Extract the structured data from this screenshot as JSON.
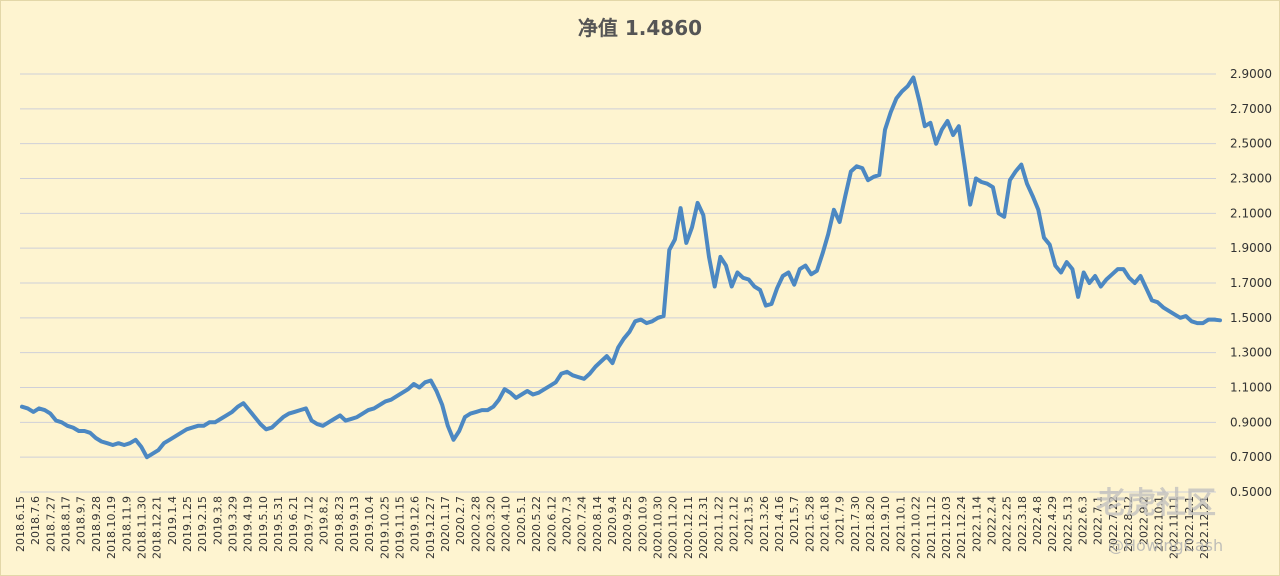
{
  "chart_data": {
    "type": "line",
    "title": "净值 1.4860",
    "xlabel": "",
    "ylabel": "",
    "ylim": [
      0.5,
      2.9
    ],
    "grid": true,
    "yticks": [
      "0.5000",
      "0.7000",
      "0.9000",
      "1.1000",
      "1.3000",
      "1.5000",
      "1.7000",
      "1.9000",
      "2.1000",
      "2.3000",
      "2.5000",
      "2.7000",
      "2.9000"
    ],
    "xticks": [
      "2018.6.15",
      "2018.7.6",
      "2018.7.27",
      "2018.8.17",
      "2018.9.7",
      "2018.9.28",
      "2018.10.19",
      "2018.11.9",
      "2018.11.30",
      "2018.12.21",
      "2019.1.4",
      "2019.1.25",
      "2019.2.15",
      "2019.3.8",
      "2019.3.29",
      "2019.4.19",
      "2019.5.10",
      "2019.5.31",
      "2019.6.21",
      "2019.7.12",
      "2019.8.2",
      "2019.8.23",
      "2019.9.13",
      "2019.10.4",
      "2019.10.25",
      "2019.11.15",
      "2019.12.6",
      "2019.12.27",
      "2020.1.17",
      "2020.2.7",
      "2020.2.28",
      "2020.3.20",
      "2020.4.10",
      "2020.5.1",
      "2020.5.22",
      "2020.6.12",
      "2020.7.3",
      "2020.7.24",
      "2020.8.14",
      "2020.9.4",
      "2020.9.25",
      "2020.10.9",
      "2020.10.30",
      "2020.11.20",
      "2020.12.11",
      "2020.12.31",
      "2021.1.22",
      "2021.2.12",
      "2021.3.5",
      "2021.3.26",
      "2021.4.16",
      "2021.5.7",
      "2021.5.28",
      "2021.6.18",
      "2021.7.9",
      "2021.7.30",
      "2021.8.20",
      "2021.9.10",
      "2021.10.1",
      "2021.10.22",
      "2021.11.12",
      "2021.12.03",
      "2021.12.24",
      "2022.1.14",
      "2022.2.4",
      "2022.2.25",
      "2022.3.18",
      "2022.4.8",
      "2022.4.29",
      "2022.5.13",
      "2022.6.3",
      "2022.7.1",
      "2022.7.22",
      "2022.8.12",
      "2022.9.2",
      "2022.10.1",
      "2022.11.11",
      "2022.12.1",
      "2022.12.21"
    ],
    "series": [
      {
        "values": [
          0.99,
          0.98,
          0.96,
          0.98,
          0.97,
          0.95,
          0.91,
          0.9,
          0.88,
          0.87,
          0.85,
          0.85,
          0.84,
          0.81,
          0.79,
          0.78,
          0.77,
          0.78,
          0.77,
          0.78,
          0.8,
          0.76,
          0.7,
          0.72,
          0.74,
          0.78,
          0.8,
          0.82,
          0.84,
          0.86,
          0.87,
          0.88,
          0.88,
          0.9,
          0.9,
          0.92,
          0.94,
          0.96,
          0.99,
          1.01,
          0.97,
          0.93,
          0.89,
          0.86,
          0.87,
          0.9,
          0.93,
          0.95,
          0.96,
          0.97,
          0.98,
          0.91,
          0.89,
          0.88,
          0.9,
          0.92,
          0.94,
          0.91,
          0.92,
          0.93,
          0.95,
          0.97,
          0.98,
          1.0,
          1.02,
          1.03,
          1.05,
          1.07,
          1.09,
          1.12,
          1.1,
          1.13,
          1.14,
          1.08,
          1.0,
          0.88,
          0.8,
          0.85,
          0.93,
          0.95,
          0.96,
          0.97,
          0.97,
          0.99,
          1.03,
          1.09,
          1.07,
          1.04,
          1.06,
          1.08,
          1.06,
          1.07,
          1.09,
          1.11,
          1.13,
          1.18,
          1.19,
          1.17,
          1.16,
          1.15,
          1.18,
          1.22,
          1.25,
          1.28,
          1.24,
          1.33,
          1.38,
          1.42,
          1.48,
          1.49,
          1.47,
          1.48,
          1.5,
          1.51,
          1.89,
          1.95,
          2.13,
          1.93,
          2.02,
          2.16,
          2.09,
          1.85,
          1.68,
          1.85,
          1.8,
          1.68,
          1.76,
          1.73,
          1.72,
          1.68,
          1.66,
          1.57,
          1.58,
          1.67,
          1.74,
          1.76,
          1.69,
          1.78,
          1.8,
          1.75,
          1.77,
          1.87,
          1.98,
          2.12,
          2.05,
          2.2,
          2.34,
          2.37,
          2.36,
          2.29,
          2.31,
          2.32,
          2.58,
          2.68,
          2.76,
          2.8,
          2.83,
          2.88,
          2.75,
          2.6,
          2.62,
          2.5,
          2.58,
          2.63,
          2.55,
          2.6,
          2.38,
          2.15,
          2.3,
          2.28,
          2.27,
          2.25,
          2.1,
          2.08,
          2.29,
          2.34,
          2.38,
          2.27,
          2.2,
          2.12,
          1.96,
          1.92,
          1.8,
          1.76,
          1.82,
          1.78,
          1.62,
          1.76,
          1.7,
          1.74,
          1.68,
          1.72,
          1.75,
          1.78,
          1.78,
          1.73,
          1.7,
          1.74,
          1.67,
          1.6,
          1.59,
          1.56,
          1.54,
          1.52,
          1.5,
          1.51,
          1.48,
          1.47,
          1.47,
          1.49,
          1.49,
          1.486
        ]
      }
    ]
  },
  "line_color": "#4c88c2",
  "watermark": {
    "text": "老虎社区",
    "handle": "@HowingCash"
  }
}
